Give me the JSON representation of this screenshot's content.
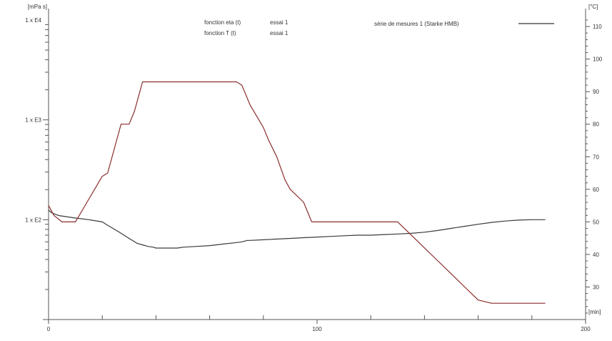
{
  "chart_data": {
    "type": "line",
    "left_axis": {
      "label": "[mPa s]",
      "scale": "log",
      "ylim": [
        10,
        10000
      ],
      "ticks": [
        {
          "value": 100,
          "label": "1 x E2"
        },
        {
          "value": 1000,
          "label": "1 x E3"
        },
        {
          "value": 10000,
          "label": "1 x E4"
        }
      ]
    },
    "right_axis": {
      "label": "[°C]",
      "scale": "linear",
      "ylim": [
        20,
        112
      ],
      "ticks": [
        {
          "value": 30,
          "label": "30"
        },
        {
          "value": 40,
          "label": "40"
        },
        {
          "value": 50,
          "label": "50"
        },
        {
          "value": 60,
          "label": "60"
        },
        {
          "value": 70,
          "label": "70"
        },
        {
          "value": 80,
          "label": "80"
        },
        {
          "value": 90,
          "label": "90"
        },
        {
          "value": 100,
          "label": "100"
        },
        {
          "value": 110,
          "label": "110"
        }
      ]
    },
    "x_axis": {
      "label": "[min]",
      "xlim": [
        0,
        200
      ],
      "ticks": [
        {
          "value": 0,
          "label": "0"
        },
        {
          "value": 100,
          "label": "100"
        },
        {
          "value": 200,
          "label": "200"
        }
      ],
      "minor_ticks": [
        20,
        40,
        60,
        80,
        120,
        140,
        160,
        180
      ]
    },
    "legend": {
      "placement": "top",
      "entries": [
        {
          "text": "fonction eta (t)",
          "run": "essai 1",
          "color": "#3a3a8c"
        },
        {
          "text": "fonction T (t)",
          "run": "essai 1",
          "color": "#8c3a3a"
        }
      ],
      "series_text": "série de mesures 1 (Starke HMB)"
    },
    "series": [
      {
        "name": "fonction eta (t)",
        "axis": "left",
        "color": "#3a3a3a",
        "x": [
          0,
          1,
          2,
          3,
          4,
          10,
          15,
          20,
          22,
          26,
          30,
          33,
          35,
          37,
          39,
          40,
          42,
          45,
          48,
          50,
          55,
          60,
          65,
          70,
          72,
          73,
          74,
          75,
          80,
          85,
          90,
          95,
          100,
          105,
          110,
          115,
          120,
          125,
          130,
          135,
          140,
          145,
          150,
          155,
          160,
          165,
          170,
          175,
          180,
          185
        ],
        "y": [
          125,
          118,
          115,
          112,
          110,
          104,
          100,
          95,
          88,
          76,
          65,
          58,
          56,
          54,
          53,
          52,
          52,
          52,
          52,
          53,
          54,
          55,
          57,
          59,
          60,
          61,
          62,
          62,
          63,
          64,
          65,
          66,
          67,
          68,
          69,
          70,
          70,
          71,
          72,
          73,
          75,
          78,
          82,
          86,
          90,
          94,
          97,
          99,
          100,
          100
        ]
      },
      {
        "name": "fonction T (t)",
        "axis": "right",
        "color": "#8a2d2d",
        "x": [
          0,
          2,
          5,
          7,
          10,
          15,
          20,
          22,
          25,
          27,
          30,
          32,
          35,
          40,
          50,
          60,
          70,
          72,
          75,
          80,
          82,
          85,
          88,
          90,
          95,
          98,
          100,
          105,
          110,
          115,
          120,
          125,
          130,
          135,
          140,
          145,
          150,
          155,
          160,
          165,
          170,
          175,
          180,
          185
        ],
        "y": [
          55,
          52,
          50,
          50,
          50,
          57,
          64,
          65,
          74,
          80,
          80,
          84,
          93,
          93,
          93,
          93,
          93,
          92,
          86,
          79,
          75,
          70,
          63,
          60,
          56,
          50,
          50,
          50,
          50,
          50,
          50,
          50,
          50,
          46,
          42,
          38,
          34,
          30,
          26,
          25,
          25,
          25,
          25,
          25
        ]
      }
    ]
  }
}
